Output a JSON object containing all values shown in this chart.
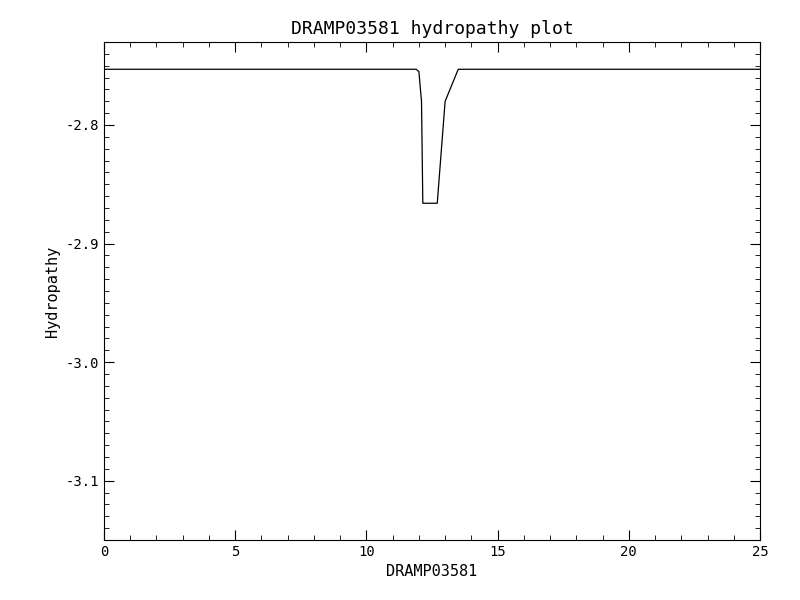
{
  "title": "DRAMP03581 hydropathy plot",
  "xlabel": "DRAMP03581",
  "ylabel": "Hydropathy",
  "xlim": [
    0,
    25
  ],
  "ylim": [
    -3.15,
    -2.73
  ],
  "x_ticks": [
    0,
    5,
    10,
    15,
    20,
    25
  ],
  "y_ticks": [
    -2.8,
    -2.9,
    -3.0,
    -3.1
  ],
  "background_color": "#ffffff",
  "line_color": "#000000",
  "line_width": 0.9,
  "title_fontsize": 13,
  "label_fontsize": 11,
  "tick_label_fontsize": 10,
  "x_data": [
    0,
    11.9,
    12.0,
    12.1,
    12.15,
    12.7,
    13.0,
    13.5,
    25
  ],
  "y_data": [
    -2.753,
    -2.753,
    -2.755,
    -2.78,
    -2.866,
    -2.866,
    -2.78,
    -2.753,
    -2.753
  ]
}
